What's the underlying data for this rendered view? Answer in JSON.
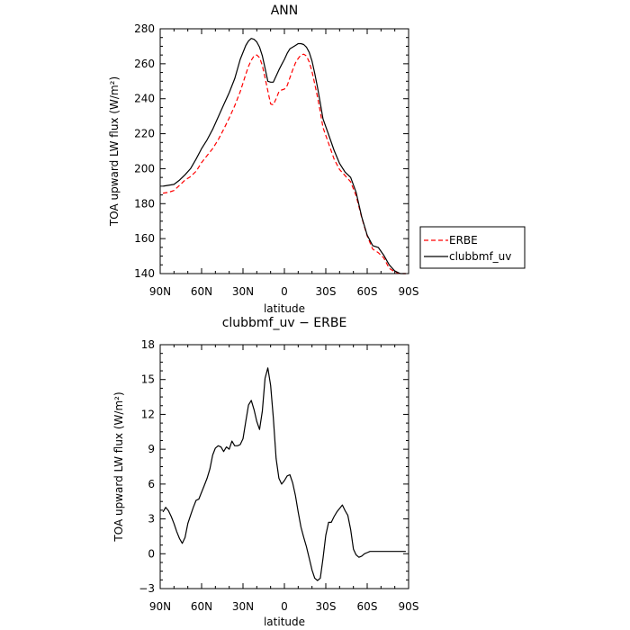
{
  "chart_data": [
    {
      "type": "line",
      "title": "ANN",
      "xlabel": "latitude",
      "ylabel": "TOA upward LW flux (W/m²)",
      "xlim": [
        -90,
        90
      ],
      "ylim": [
        140,
        280
      ],
      "x_ticks": [
        -90,
        -60,
        -30,
        0,
        30,
        60,
        90
      ],
      "x_tick_labels": [
        "90N",
        "60N",
        "30N",
        "0",
        "30S",
        "60S",
        "90S"
      ],
      "y_ticks": [
        140,
        160,
        180,
        200,
        220,
        240,
        260,
        280
      ],
      "y_tick_labels": [
        "140",
        "160",
        "180",
        "200",
        "220",
        "240",
        "260",
        "280"
      ],
      "grid": false,
      "legend_position": "outside-right",
      "series": [
        {
          "name": "ERBE",
          "color": "#ff0000",
          "style": "dashed",
          "x": [
            -88,
            -84,
            -80,
            -76,
            -72,
            -68,
            -64,
            -60,
            -56,
            -52,
            -48,
            -44,
            -40,
            -36,
            -32,
            -28,
            -26,
            -24,
            -22,
            -20,
            -18,
            -16,
            -14,
            -12,
            -10,
            -8,
            -6,
            -4,
            -2,
            0,
            2,
            4,
            6,
            8,
            10,
            12,
            14,
            16,
            18,
            20,
            22,
            24,
            26,
            28,
            32,
            36,
            40,
            44,
            48,
            52,
            56,
            60,
            64,
            68,
            72,
            76,
            80,
            84,
            88
          ],
          "values": [
            186,
            186.5,
            187.5,
            190.5,
            193.5,
            195.5,
            198.5,
            203.5,
            207.5,
            211.5,
            216.5,
            222.5,
            229,
            236,
            244,
            254,
            258.5,
            262,
            264.5,
            265,
            263.5,
            259,
            252,
            244.5,
            237,
            236.5,
            240,
            244,
            245,
            245.5,
            247.5,
            252,
            256.5,
            260.5,
            263,
            265,
            265.5,
            264.5,
            261,
            255.5,
            248.5,
            241,
            232.5,
            223.5,
            214.5,
            205.5,
            199.5,
            196,
            192.5,
            184.5,
            172,
            161.5,
            154,
            152,
            149,
            143,
            141,
            140,
            140
          ]
        },
        {
          "name": "clubbmf_uv",
          "color": "#000000",
          "style": "solid",
          "x": [
            -88,
            -84,
            -80,
            -76,
            -72,
            -68,
            -64,
            -60,
            -56,
            -52,
            -48,
            -44,
            -40,
            -36,
            -32,
            -28,
            -26,
            -24,
            -22,
            -20,
            -18,
            -16,
            -14,
            -12,
            -10,
            -8,
            -6,
            -4,
            -2,
            0,
            2,
            4,
            6,
            8,
            10,
            12,
            14,
            16,
            18,
            20,
            22,
            24,
            26,
            28,
            32,
            36,
            40,
            44,
            48,
            52,
            56,
            60,
            64,
            68,
            72,
            76,
            80,
            84,
            88
          ],
          "values": [
            190,
            190.5,
            191,
            193.5,
            196.5,
            200,
            205.5,
            211.5,
            216.5,
            222.5,
            229.5,
            236.5,
            243.5,
            251.5,
            262.5,
            270.5,
            273,
            274.5,
            274,
            272.5,
            269.5,
            264.5,
            257.5,
            250,
            249.5,
            249.5,
            253,
            256.5,
            259.5,
            262.5,
            266,
            268.5,
            269.5,
            270.5,
            271.5,
            271.5,
            271,
            269.5,
            266.5,
            261.5,
            254.5,
            246.5,
            237.5,
            228.5,
            219.5,
            210.5,
            203,
            198,
            195,
            186.5,
            172.5,
            162,
            156,
            155,
            150.5,
            145,
            141.5,
            140,
            140
          ]
        }
      ]
    },
    {
      "type": "line",
      "title": "clubbmf_uv − ERBE",
      "xlabel": "latitude",
      "ylabel": "TOA upward LW flux (W/m²)",
      "xlim": [
        -90,
        90
      ],
      "ylim": [
        -3,
        18
      ],
      "x_ticks": [
        -90,
        -60,
        -30,
        0,
        30,
        60,
        90
      ],
      "x_tick_labels": [
        "90N",
        "60N",
        "30N",
        "0",
        "30S",
        "60S",
        "90S"
      ],
      "y_ticks": [
        -3,
        0,
        3,
        6,
        9,
        12,
        15,
        18
      ],
      "y_tick_labels": [
        "−3",
        "0",
        "3",
        "6",
        "9",
        "12",
        "15",
        "18"
      ],
      "grid": false,
      "series": [
        {
          "color": "#000000",
          "style": "solid",
          "x": [
            -88,
            -86,
            -84,
            -82,
            -80,
            -78,
            -76,
            -74,
            -72,
            -70,
            -68,
            -66,
            -64,
            -62,
            -60,
            -58,
            -56,
            -54,
            -52,
            -50,
            -48,
            -46,
            -44,
            -42,
            -40,
            -38,
            -36,
            -34,
            -32,
            -30,
            -28,
            -26,
            -24,
            -22,
            -20,
            -18,
            -16,
            -14,
            -12,
            -10,
            -8,
            -6,
            -4,
            -2,
            0,
            2,
            4,
            6,
            8,
            10,
            12,
            14,
            16,
            18,
            20,
            22,
            24,
            26,
            28,
            30,
            32,
            34,
            36,
            38,
            40,
            42,
            44,
            46,
            48,
            50,
            52,
            54,
            56,
            58,
            60,
            62,
            64,
            66,
            68,
            70,
            72,
            74,
            76,
            78,
            80,
            82,
            84,
            86,
            88
          ],
          "values": [
            3.6,
            4.0,
            3.7,
            3.2,
            2.6,
            1.9,
            1.3,
            0.9,
            1.4,
            2.6,
            3.3,
            4.0,
            4.6,
            4.7,
            5.3,
            5.9,
            6.5,
            7.3,
            8.5,
            9.1,
            9.3,
            9.2,
            8.8,
            9.2,
            9.0,
            9.7,
            9.3,
            9.3,
            9.4,
            9.9,
            11.4,
            12.8,
            13.2,
            12.4,
            11.4,
            10.7,
            12.3,
            15.1,
            16.0,
            14.5,
            11.7,
            8.2,
            6.5,
            6.0,
            6.3,
            6.7,
            6.8,
            6.1,
            5.0,
            3.6,
            2.3,
            1.4,
            0.6,
            -0.4,
            -1.4,
            -2.1,
            -2.3,
            -2.1,
            -0.4,
            1.6,
            2.7,
            2.7,
            3.2,
            3.6,
            3.9,
            4.2,
            3.7,
            3.3,
            2.1,
            0.4,
            -0.1,
            -0.3,
            -0.2,
            0.0,
            0.1,
            0.2,
            0.2,
            0.2,
            0.2,
            0.2,
            0.2,
            0.2,
            0.2,
            0.2,
            0.2,
            0.2,
            0.2,
            0.2,
            0.2
          ]
        }
      ]
    }
  ]
}
